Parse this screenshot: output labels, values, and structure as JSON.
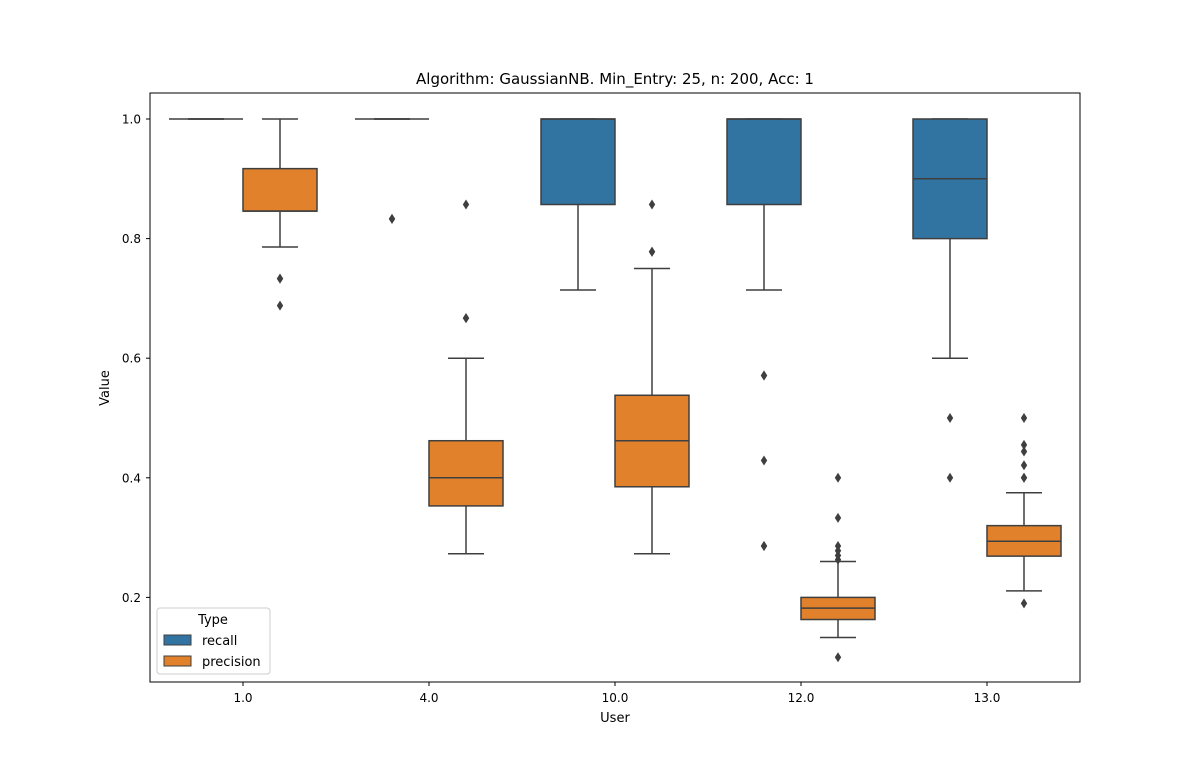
{
  "chart_data": {
    "type": "box",
    "title": "Algorithm: GaussianNB. Min_Entry: 25, n: 200, Acc: 1",
    "xlabel": "User",
    "ylabel": "Value",
    "categories": [
      "1.0",
      "4.0",
      "10.0",
      "12.0",
      "13.0"
    ],
    "ylim": [
      0.05,
      1.04
    ],
    "yticks": [
      0.2,
      0.4,
      0.6,
      0.8,
      1.0
    ],
    "ytick_labels": [
      "0.2",
      "0.4",
      "0.6",
      "0.8",
      "1.0"
    ],
    "grid": false,
    "legend": {
      "title": "Type",
      "position": "lower-left"
    },
    "series": [
      {
        "name": "recall",
        "color": "#3274a1",
        "boxes": [
          {
            "category": "1.0",
            "whislo": 1.0,
            "q1": 1.0,
            "med": 1.0,
            "q3": 1.0,
            "whishi": 1.0,
            "fliers": []
          },
          {
            "category": "4.0",
            "whislo": 1.0,
            "q1": 1.0,
            "med": 1.0,
            "q3": 1.0,
            "whishi": 1.0,
            "fliers": [
              0.833,
              0.833
            ]
          },
          {
            "category": "10.0",
            "whislo": 0.714,
            "q1": 0.857,
            "med": 1.0,
            "q3": 1.0,
            "whishi": 1.0,
            "fliers": []
          },
          {
            "category": "12.0",
            "whislo": 0.714,
            "q1": 0.857,
            "med": 1.0,
            "q3": 1.0,
            "whishi": 1.0,
            "fliers": [
              0.571,
              0.571,
              0.429,
              0.286,
              0.286
            ]
          },
          {
            "category": "13.0",
            "whislo": 0.6,
            "q1": 0.8,
            "med": 0.9,
            "q3": 1.0,
            "whishi": 1.0,
            "fliers": [
              0.5,
              0.4
            ]
          }
        ]
      },
      {
        "name": "precision",
        "color": "#e1812c",
        "boxes": [
          {
            "category": "1.0",
            "whislo": 0.786,
            "q1": 0.846,
            "med": 0.846,
            "q3": 0.917,
            "whishi": 1.0,
            "fliers": [
              0.733,
              0.733,
              0.688
            ]
          },
          {
            "category": "4.0",
            "whislo": 0.273,
            "q1": 0.353,
            "med": 0.4,
            "q3": 0.462,
            "whishi": 0.6,
            "fliers": [
              0.857,
              0.667,
              0.667
            ]
          },
          {
            "category": "10.0",
            "whislo": 0.273,
            "q1": 0.385,
            "med": 0.462,
            "q3": 0.538,
            "whishi": 0.75,
            "fliers": [
              0.857,
              0.778,
              0.778
            ]
          },
          {
            "category": "12.0",
            "whislo": 0.133,
            "q1": 0.163,
            "med": 0.182,
            "q3": 0.2,
            "whishi": 0.26,
            "fliers": [
              0.4,
              0.333,
              0.286,
              0.278,
              0.27,
              0.263,
              0.1
            ]
          },
          {
            "category": "13.0",
            "whislo": 0.211,
            "q1": 0.269,
            "med": 0.294,
            "q3": 0.32,
            "whishi": 0.375,
            "fliers": [
              0.5,
              0.455,
              0.444,
              0.421,
              0.4,
              0.4,
              0.19
            ]
          }
        ]
      }
    ]
  }
}
